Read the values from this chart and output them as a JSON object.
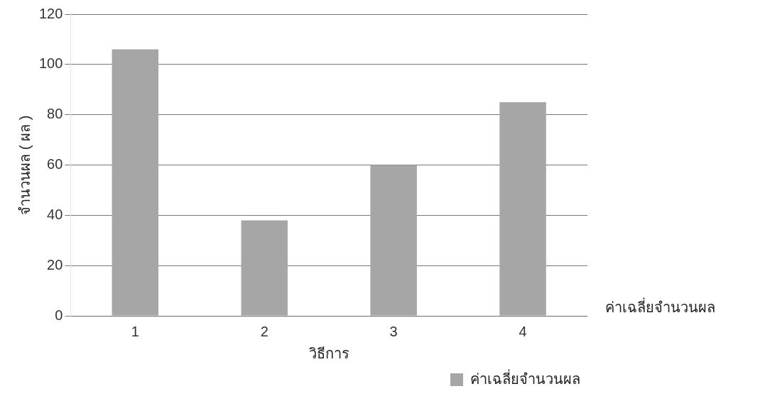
{
  "chart_data": {
    "type": "bar",
    "xlabel": "วิธีการ",
    "ylabel": "จำนวนผล ( ผล )",
    "categories": [
      "1",
      "2",
      "3",
      "4"
    ],
    "series": [
      {
        "name": "ค่าเฉลี่ยจำนวนผล",
        "color": "#a6a6a6",
        "values": [
          106,
          38,
          60,
          85
        ]
      }
    ],
    "ylim": [
      0,
      120
    ],
    "yticks": [
      0,
      20,
      40,
      60,
      80,
      100,
      120
    ],
    "grid": "y",
    "legend": "bottom right",
    "annotations": [
      "ค่าเฉลี่ยจำนวนผล"
    ]
  }
}
